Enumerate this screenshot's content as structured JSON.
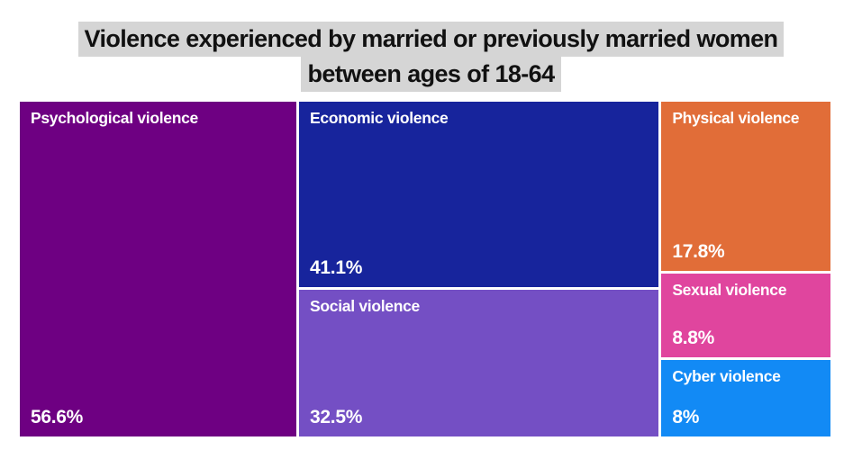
{
  "title": {
    "line1": "Violence experienced by married or previously married women",
    "line2": "between ages of 18-64",
    "highlight_color": "#d5d5d5",
    "text_color": "#111111"
  },
  "chart_data": {
    "type": "treemap",
    "title": "Violence experienced by married or previously married women between ages of 18-64",
    "unit": "%",
    "label_color": "#ffffff",
    "background_color": "#ffffff",
    "items": [
      {
        "label": "Psychological violence",
        "value": 56.6,
        "pct_label": "56.6%",
        "color": "#6e0082"
      },
      {
        "label": "Economic violence",
        "value": 41.1,
        "pct_label": "41.1%",
        "color": "#17249c"
      },
      {
        "label": "Social violence",
        "value": 32.5,
        "pct_label": "32.5%",
        "color": "#744fc4"
      },
      {
        "label": "Physical violence",
        "value": 17.8,
        "pct_label": "17.8%",
        "color": "#e16d38"
      },
      {
        "label": "Sexual violence",
        "value": 8.8,
        "pct_label": "8.8%",
        "color": "#e0459e"
      },
      {
        "label": "Cyber violence",
        "value": 8,
        "pct_label": "8%",
        "color": "#128af5"
      }
    ]
  }
}
